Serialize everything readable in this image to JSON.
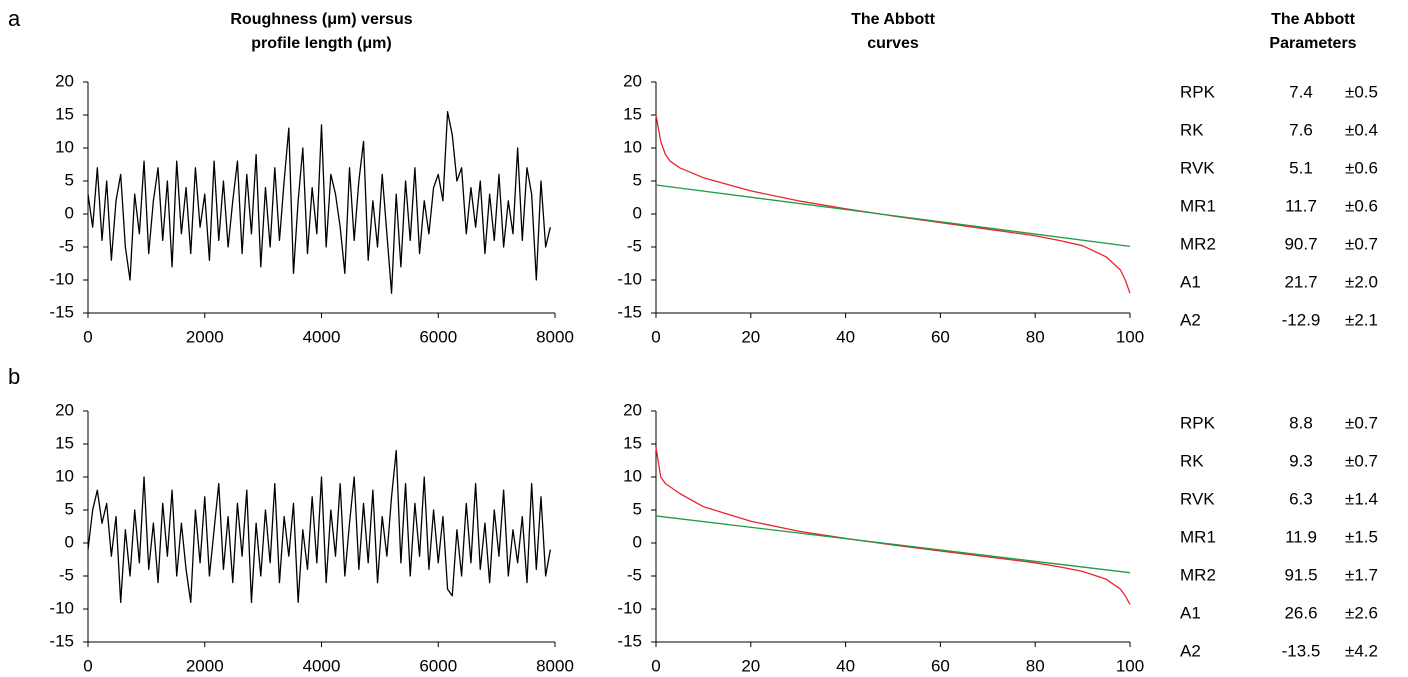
{
  "panel_labels": [
    "a",
    "b"
  ],
  "chart_data": [
    {
      "type": "line",
      "title": [
        "Roughness (μm) versus",
        "profile length (μm)"
      ],
      "xlim": [
        0,
        8000
      ],
      "xticks": [
        0,
        2000,
        4000,
        6000,
        8000
      ],
      "ylim": [
        -15,
        20
      ],
      "yticks": [
        -15,
        -10,
        -5,
        0,
        5,
        10,
        15,
        20
      ],
      "series": [
        {
          "color": "#000000",
          "x": [
            0,
            80,
            160,
            240,
            320,
            400,
            480,
            560,
            640,
            720,
            800,
            880,
            960,
            1040,
            1120,
            1200,
            1280,
            1360,
            1440,
            1520,
            1600,
            1680,
            1760,
            1840,
            1920,
            2000,
            2080,
            2160,
            2240,
            2320,
            2400,
            2480,
            2560,
            2640,
            2720,
            2800,
            2880,
            2960,
            3040,
            3120,
            3200,
            3280,
            3360,
            3440,
            3520,
            3600,
            3680,
            3760,
            3840,
            3920,
            4000,
            4080,
            4160,
            4240,
            4320,
            4400,
            4480,
            4560,
            4640,
            4720,
            4800,
            4880,
            4960,
            5040,
            5120,
            5200,
            5280,
            5360,
            5440,
            5520,
            5600,
            5680,
            5760,
            5840,
            5920,
            6000,
            6080,
            6160,
            6240,
            6320,
            6400,
            6480,
            6560,
            6640,
            6720,
            6800,
            6880,
            6960,
            7040,
            7120,
            7200,
            7280,
            7360,
            7440,
            7520,
            7600,
            7680,
            7760,
            7840,
            7920
          ],
          "values": [
            3,
            -2,
            7,
            -4,
            5,
            -7,
            2,
            6,
            -5,
            -10,
            3,
            -3,
            8,
            -6,
            2,
            7,
            -4,
            5,
            -8,
            8,
            -3,
            4,
            -6,
            7,
            -2,
            3,
            -7,
            8,
            -4,
            5,
            -5,
            2,
            8,
            -6,
            6,
            -3,
            9,
            -8,
            4,
            -5,
            7,
            -4,
            5,
            13,
            -9,
            2,
            10,
            -6,
            4,
            -3,
            13.5,
            -5,
            6,
            3,
            -2,
            -9,
            7,
            -4,
            5,
            11,
            -7,
            2,
            -5,
            6,
            -3,
            -12,
            3,
            -8,
            5,
            -4,
            7,
            -6,
            2,
            -3,
            4,
            6,
            2,
            15.5,
            12,
            5,
            7,
            -3,
            4,
            -2,
            5,
            -6,
            3,
            -4,
            6,
            -5,
            2,
            -3,
            10,
            -4,
            7,
            3,
            -10,
            5,
            -5,
            -2
          ]
        }
      ]
    },
    {
      "type": "line",
      "title": [
        "The Abbott",
        "curves"
      ],
      "xlim": [
        0,
        100
      ],
      "xticks": [
        0,
        20,
        40,
        60,
        80,
        100
      ],
      "ylim": [
        -15,
        20
      ],
      "yticks": [
        -15,
        -10,
        -5,
        0,
        5,
        10,
        15,
        20
      ],
      "series": [
        {
          "color": "#e8262b",
          "x": [
            0,
            1,
            2,
            3,
            5,
            10,
            20,
            30,
            40,
            50,
            60,
            70,
            80,
            85,
            90,
            95,
            98,
            99,
            100
          ],
          "values": [
            15,
            11,
            9,
            8,
            7,
            5.5,
            3.5,
            2,
            0.8,
            -0.3,
            -1.3,
            -2.3,
            -3.3,
            -4,
            -4.8,
            -6.5,
            -8.5,
            -10,
            -12
          ]
        },
        {
          "color": "#1f9a48",
          "x": [
            0,
            100
          ],
          "values": [
            4.4,
            -4.9
          ]
        }
      ]
    },
    {
      "type": "line",
      "xlim": [
        0,
        8000
      ],
      "xticks": [
        0,
        2000,
        4000,
        6000,
        8000
      ],
      "ylim": [
        -15,
        20
      ],
      "yticks": [
        -15,
        -10,
        -5,
        0,
        5,
        10,
        15,
        20
      ],
      "series": [
        {
          "color": "#000000",
          "x": [
            0,
            80,
            160,
            240,
            320,
            400,
            480,
            560,
            640,
            720,
            800,
            880,
            960,
            1040,
            1120,
            1200,
            1280,
            1360,
            1440,
            1520,
            1600,
            1680,
            1760,
            1840,
            1920,
            2000,
            2080,
            2160,
            2240,
            2320,
            2400,
            2480,
            2560,
            2640,
            2720,
            2800,
            2880,
            2960,
            3040,
            3120,
            3200,
            3280,
            3360,
            3440,
            3520,
            3600,
            3680,
            3760,
            3840,
            3920,
            4000,
            4080,
            4160,
            4240,
            4320,
            4400,
            4480,
            4560,
            4640,
            4720,
            4800,
            4880,
            4960,
            5040,
            5120,
            5200,
            5280,
            5360,
            5440,
            5520,
            5600,
            5680,
            5760,
            5840,
            5920,
            6000,
            6080,
            6160,
            6240,
            6320,
            6400,
            6480,
            6560,
            6640,
            6720,
            6800,
            6880,
            6960,
            7040,
            7120,
            7200,
            7280,
            7360,
            7440,
            7520,
            7600,
            7680,
            7760,
            7840,
            7920
          ],
          "values": [
            -1,
            5,
            8,
            3,
            6,
            -2,
            4,
            -9,
            2,
            -5,
            5,
            -3,
            10,
            -4,
            3,
            -6,
            6,
            -2,
            8,
            -5,
            3,
            -4,
            -9,
            5,
            -3,
            7,
            -5,
            2,
            9,
            -4,
            4,
            -6,
            6,
            -2,
            8,
            -9,
            3,
            -5,
            5,
            -3,
            9,
            -6,
            4,
            -2,
            6,
            -9,
            2,
            -4,
            7,
            -3,
            10,
            -6,
            5,
            -2,
            9,
            -5,
            3,
            10,
            -4,
            6,
            -3,
            8,
            -6,
            4,
            -2,
            7,
            14,
            -3,
            9,
            -5,
            6,
            -2,
            10,
            -4,
            5,
            -3,
            4,
            -7,
            -8,
            2,
            -5,
            6,
            -3,
            9,
            -4,
            3,
            -6,
            5,
            -2,
            8,
            -5,
            2,
            -3,
            4,
            -6,
            9,
            -4,
            7,
            -5,
            -1
          ]
        }
      ]
    },
    {
      "type": "line",
      "xlim": [
        0,
        100
      ],
      "xticks": [
        0,
        20,
        40,
        60,
        80,
        100
      ],
      "ylim": [
        -15,
        20
      ],
      "yticks": [
        -15,
        -10,
        -5,
        0,
        5,
        10,
        15,
        20
      ],
      "series": [
        {
          "color": "#e8262b",
          "x": [
            0,
            1,
            2,
            3,
            5,
            10,
            20,
            30,
            40,
            50,
            60,
            70,
            80,
            85,
            90,
            95,
            98,
            99,
            100
          ],
          "values": [
            14.5,
            10,
            9,
            8.5,
            7.5,
            5.5,
            3.3,
            1.8,
            0.7,
            -0.3,
            -1.2,
            -2.1,
            -3,
            -3.6,
            -4.3,
            -5.5,
            -7,
            -8,
            -9.3
          ]
        },
        {
          "color": "#1f9a48",
          "x": [
            0,
            100
          ],
          "values": [
            4.1,
            -4.5
          ]
        }
      ]
    }
  ],
  "parameters": {
    "title": [
      "The Abbott",
      "Parameters"
    ],
    "panels": [
      [
        [
          "RPK",
          "7.4",
          "±0.5"
        ],
        [
          "RK",
          "7.6",
          "±0.4"
        ],
        [
          "RVK",
          "5.1",
          "±0.6"
        ],
        [
          "MR1",
          "11.7",
          "±0.6"
        ],
        [
          "MR2",
          "90.7",
          "±0.7"
        ],
        [
          "A1",
          "21.7",
          "±2.0"
        ],
        [
          "A2",
          "-12.9",
          "±2.1"
        ]
      ],
      [
        [
          "RPK",
          "8.8",
          "±0.7"
        ],
        [
          "RK",
          "9.3",
          "±0.7"
        ],
        [
          "RVK",
          "6.3",
          "±1.4"
        ],
        [
          "MR1",
          "11.9",
          "±1.5"
        ],
        [
          "MR2",
          "91.5",
          "±1.7"
        ],
        [
          "A1",
          "26.6",
          "±2.6"
        ],
        [
          "A2",
          "-13.5",
          "±4.2"
        ]
      ]
    ]
  }
}
